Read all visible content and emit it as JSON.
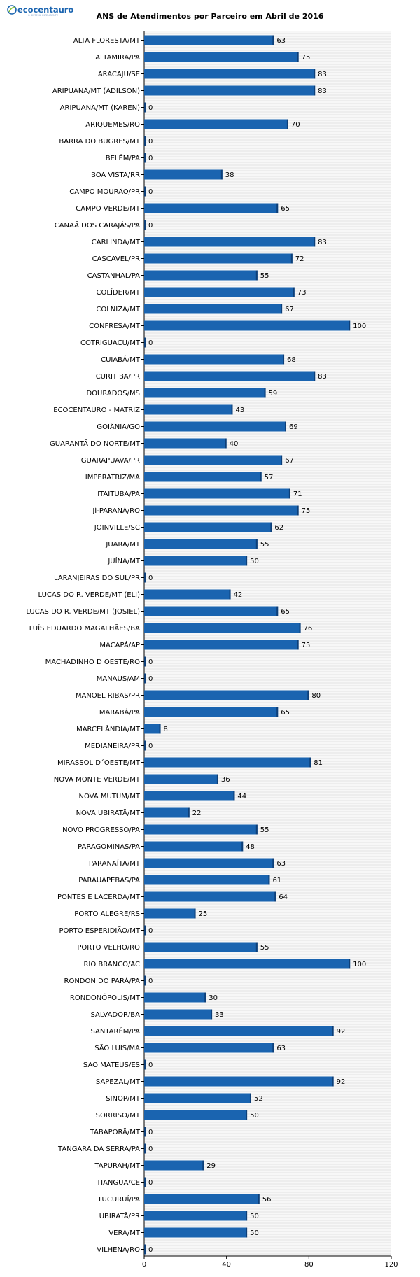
{
  "logo": {
    "text": "ecocentauro",
    "tagline": "O SISTEMA INTELIGENTE"
  },
  "colors": {
    "bar": "#1a64b0",
    "bar_edge": "#0d3f78",
    "grid": "#d0d0d0",
    "plot_bg": "#f7f7f7"
  },
  "chart_data": {
    "type": "bar",
    "orientation": "horizontal",
    "title": "ANS de Atendimentos por Parceiro em Abril de 2016",
    "xlabel": "",
    "ylabel": "",
    "xlim": [
      0,
      120
    ],
    "xticks": [
      0,
      40,
      80,
      120
    ],
    "grid": true,
    "legend": "none",
    "categories": [
      "ALTA FLORESTA/MT",
      "ALTAMIRA/PA",
      "ARACAJU/SE",
      "ARIPUANÃ/MT (ADILSON)",
      "ARIPUANÃ/MT (KAREN)",
      "ARIQUEMES/RO",
      "BARRA DO BUGRES/MT",
      "BELÉM/PA",
      "BOA VISTA/RR",
      "CAMPO MOURÃO/PR",
      "CAMPO VERDE/MT",
      "CANAÃ DOS CARAJÁS/PA",
      "CARLINDA/MT",
      "CASCAVEL/PR",
      "CASTANHAL/PA",
      "COLÍDER/MT",
      "COLNIZA/MT",
      "CONFRESA/MT",
      "COTRIGUACU/MT",
      "CUIABÁ/MT",
      "CURITIBA/PR",
      "DOURADOS/MS",
      "ECOCENTAURO - MATRIZ",
      "GOIÂNIA/GO",
      "GUARANTÃ DO NORTE/MT",
      "GUARAPUAVA/PR",
      "IMPERATRIZ/MA",
      "ITAITUBA/PA",
      "JÍ-PARANÁ/RO",
      "JOINVILLE/SC",
      "JUARA/MT",
      "JUÍNA/MT",
      "LARANJEIRAS DO SUL/PR",
      "LUCAS DO R. VERDE/MT (ELI)",
      "LUCAS DO R. VERDE/MT (JOSIEL)",
      "LUÍS EDUARDO MAGALHÃES/BA",
      "MACAPÁ/AP",
      "MACHADINHO D OESTE/RO",
      "MANAUS/AM",
      "MANOEL RIBAS/PR",
      "MARABÁ/PA",
      "MARCELÂNDIA/MT",
      "MEDIANEIRA/PR",
      "MIRASSOL D´OESTE/MT",
      "NOVA MONTE VERDE/MT",
      "NOVA MUTUM/MT",
      "NOVA UBIRATÃ/MT",
      "NOVO PROGRESSO/PA",
      "PARAGOMINAS/PA",
      "PARANAÍTA/MT",
      "PARAUAPEBAS/PA",
      "PONTES E LACERDA/MT",
      "PORTO ALEGRE/RS",
      "PORTO ESPERIDIÃO/MT",
      "PORTO VELHO/RO",
      "RIO BRANCO/AC",
      "RONDON DO PARÁ/PA",
      "RONDONÓPOLIS/MT",
      "SALVADOR/BA",
      "SANTARÉM/PA",
      "SÃO LUIS/MA",
      "SAO MATEUS/ES",
      "SAPEZAL/MT",
      "SINOP/MT",
      "SORRISO/MT",
      "TABAPORÃ/MT",
      "TANGARA DA SERRA/PA",
      "TAPURAH/MT",
      "TIANGUA/CE",
      "TUCURUÍ/PA",
      "UBIRATÃ/PR",
      "VERA/MT",
      "VILHENA/RO"
    ],
    "values": [
      63,
      75,
      83,
      83,
      0,
      70,
      0,
      0,
      38,
      0,
      65,
      0,
      83,
      72,
      55,
      73,
      67,
      100,
      0,
      68,
      83,
      59,
      43,
      69,
      40,
      67,
      57,
      71,
      75,
      62,
      55,
      50,
      0,
      42,
      65,
      76,
      75,
      0,
      0,
      80,
      65,
      8,
      0,
      81,
      36,
      44,
      22,
      55,
      48,
      63,
      61,
      64,
      25,
      0,
      55,
      100,
      0,
      30,
      33,
      92,
      63,
      0,
      92,
      52,
      50,
      0,
      0,
      29,
      0,
      56,
      50,
      50,
      0
    ]
  }
}
